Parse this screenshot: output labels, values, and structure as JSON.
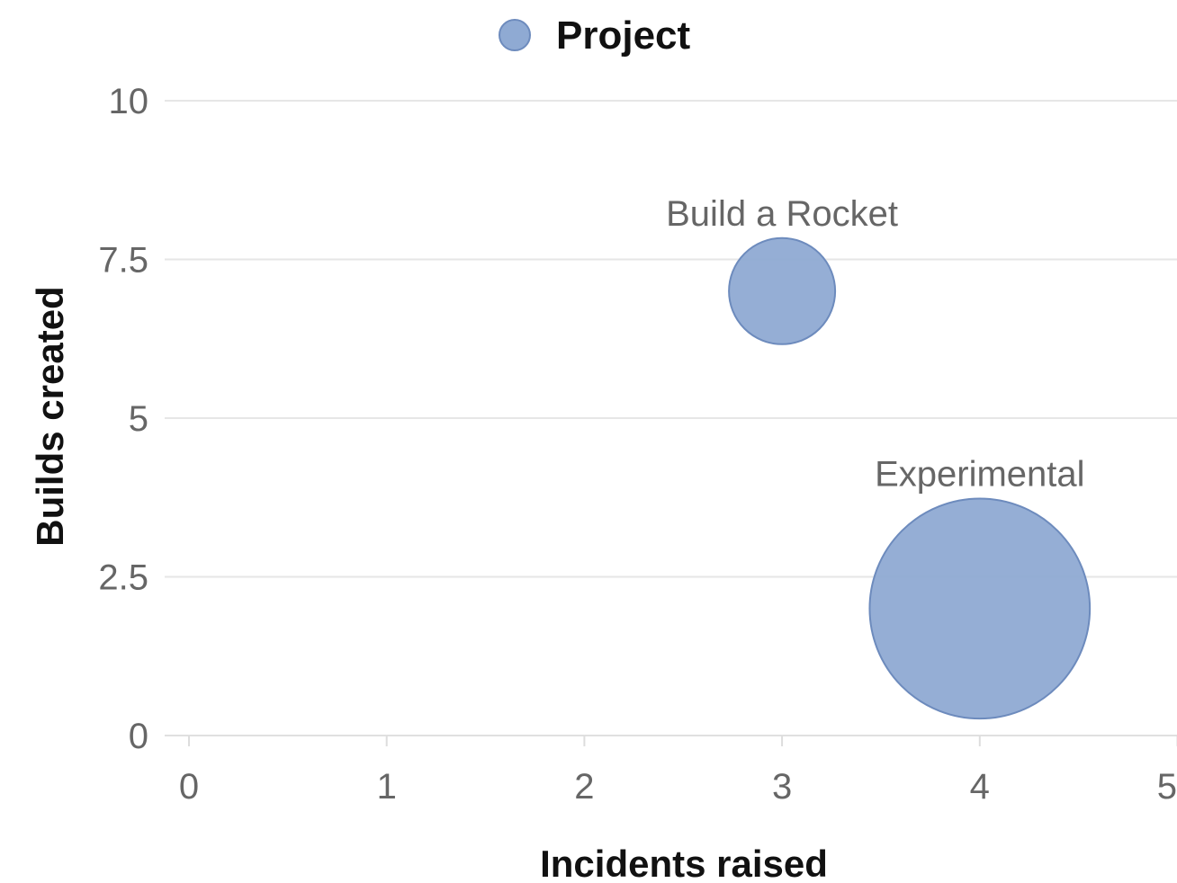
{
  "chart_data": {
    "type": "scatter",
    "subtype": "bubble",
    "title": "",
    "xlabel": "Incidents raised",
    "ylabel": "Builds created",
    "xlim": [
      0,
      5
    ],
    "ylim": [
      0,
      10
    ],
    "x_ticks": [
      "0",
      "1",
      "2",
      "3",
      "4",
      "5"
    ],
    "y_ticks": [
      "0",
      "2.5",
      "5",
      "7.5",
      "10"
    ],
    "grid": "horizontal",
    "legend_position": "top-center",
    "series": [
      {
        "name": "Project",
        "color": "#8faad3",
        "stroke": "#6d8bbd",
        "points": [
          {
            "label": "Build a Rocket",
            "x": 3,
            "y": 7,
            "size": 1
          },
          {
            "label": "Experimental",
            "x": 4,
            "y": 2,
            "size": 4.3
          }
        ]
      }
    ]
  }
}
